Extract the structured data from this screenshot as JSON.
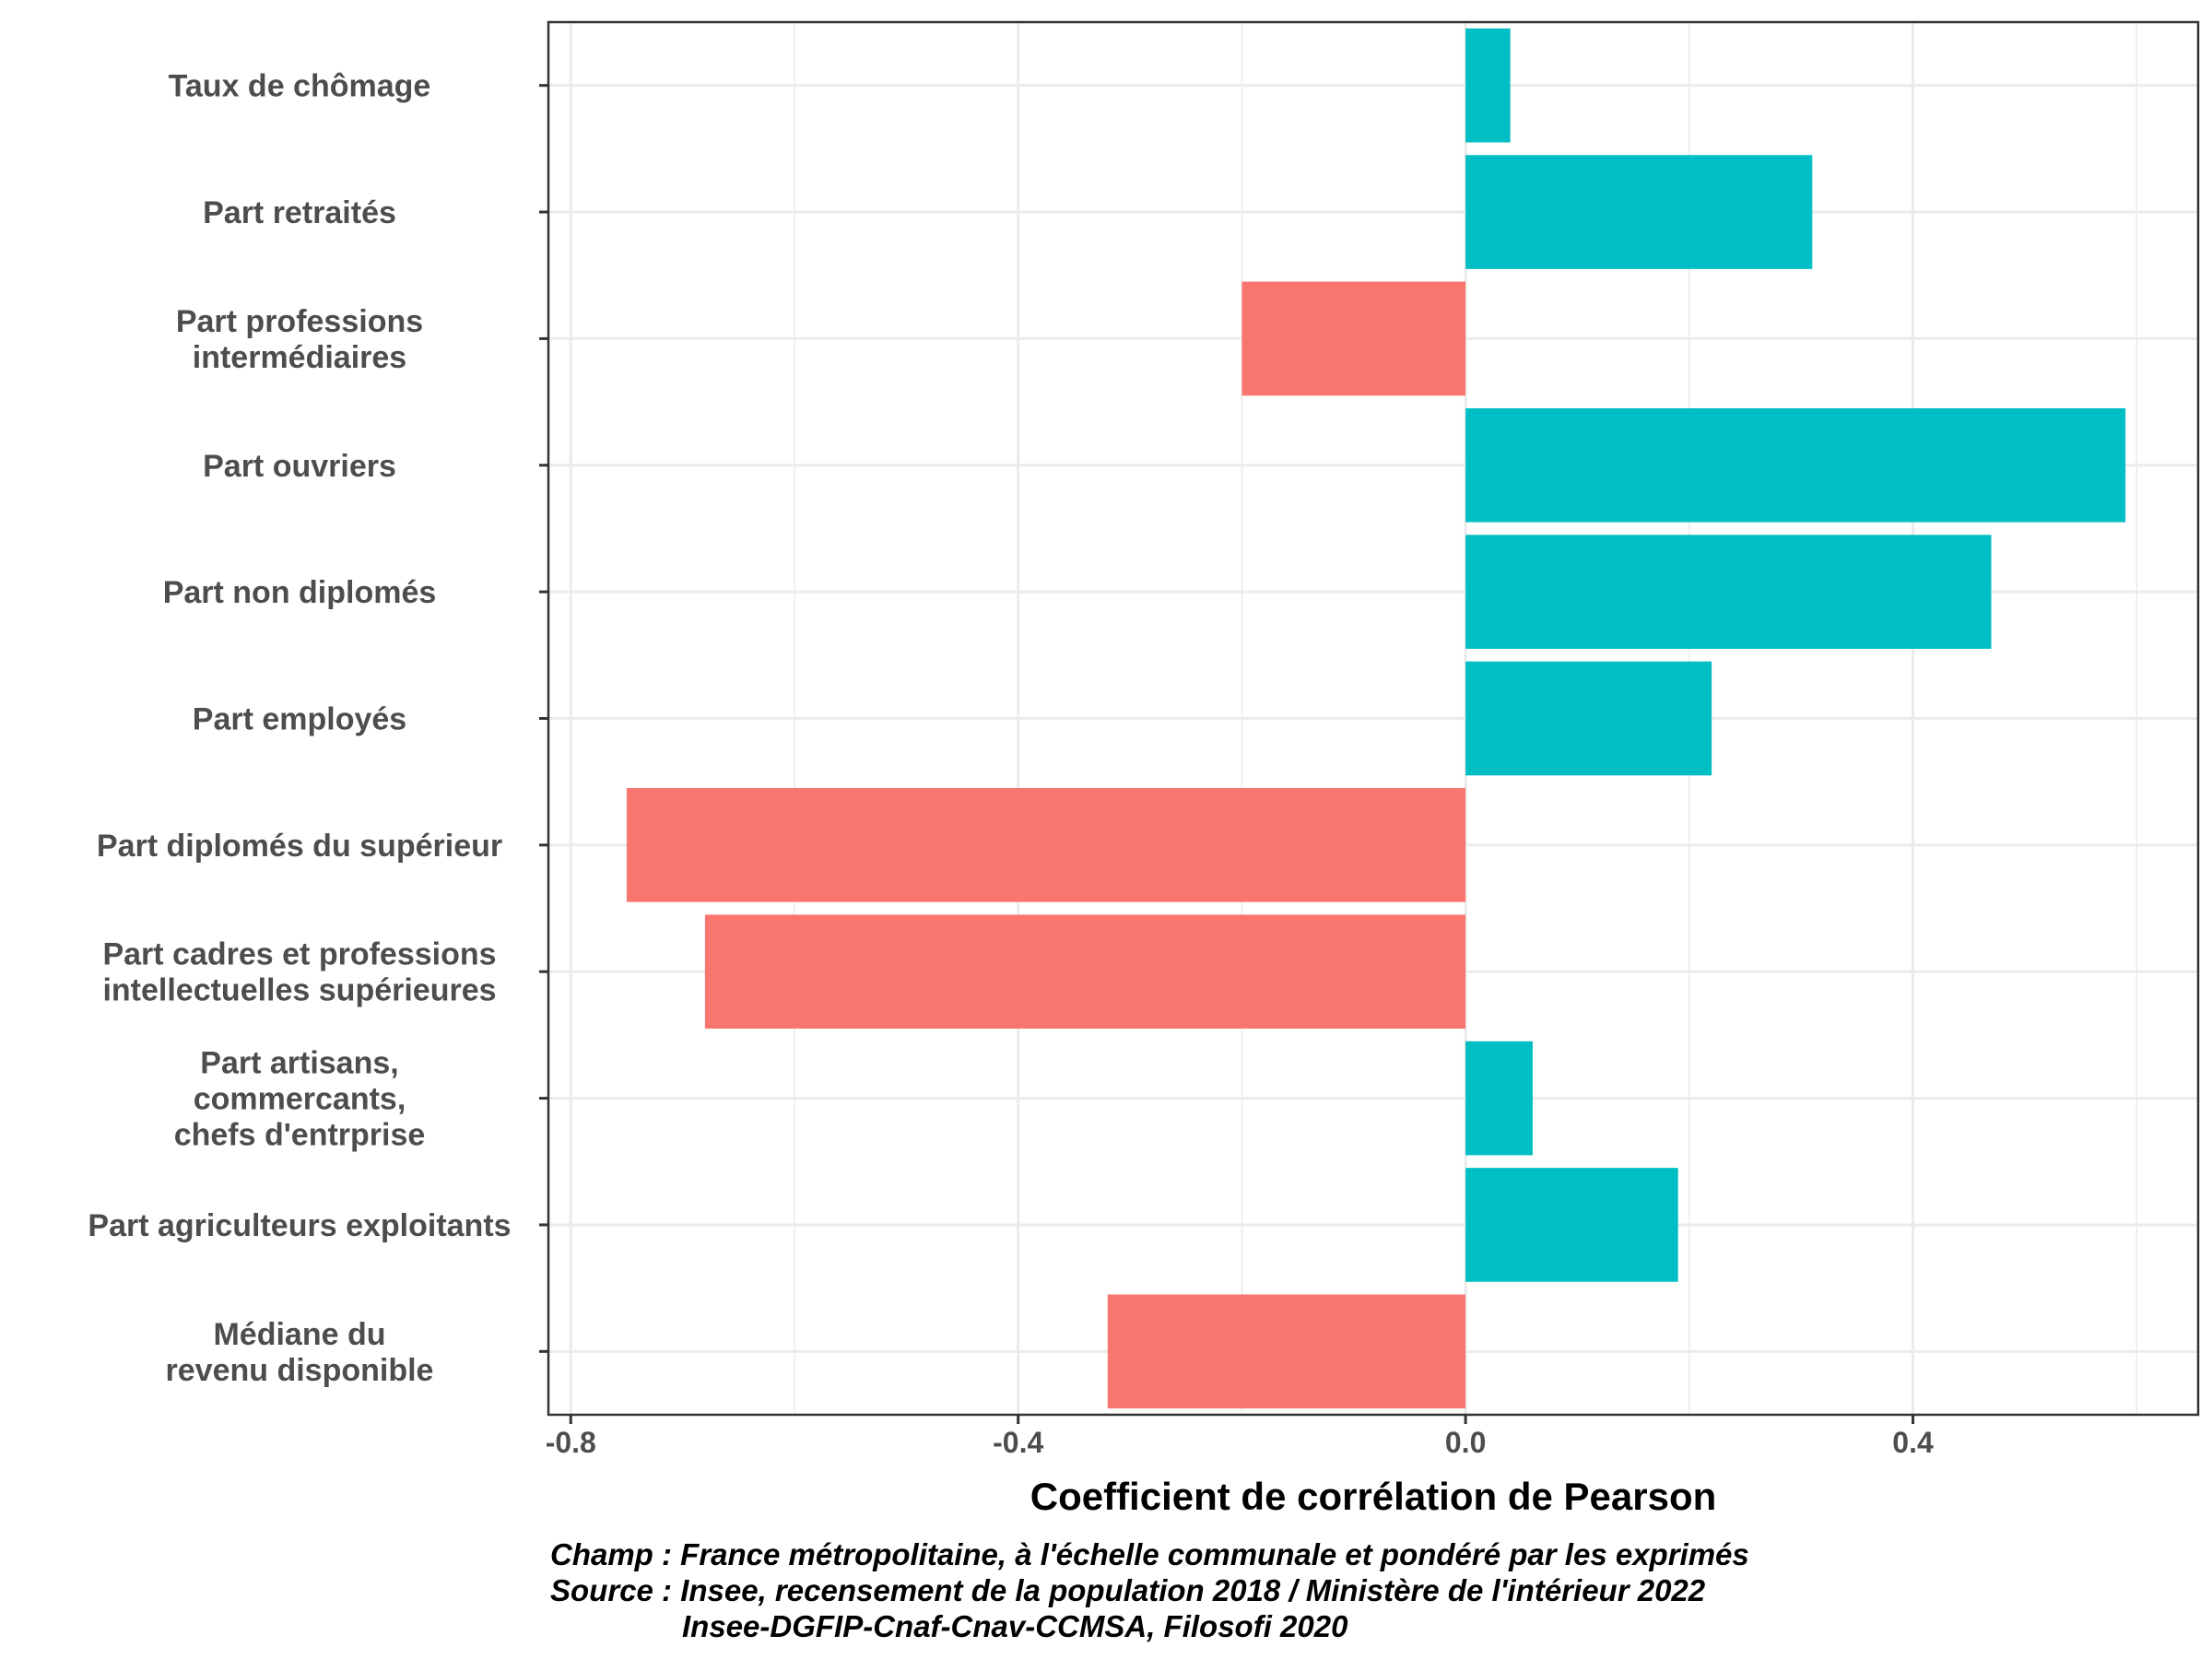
{
  "chart_data": {
    "type": "bar",
    "orientation": "horizontal",
    "categories": [
      [
        "Taux de chômage"
      ],
      [
        "Part retraités"
      ],
      [
        "Part professions",
        "intermédiaires"
      ],
      [
        "Part ouvriers"
      ],
      [
        "Part non diplomés"
      ],
      [
        "Part employés"
      ],
      [
        "Part diplomés du supérieur"
      ],
      [
        "Part cadres et professions",
        "intellectuelles supérieures"
      ],
      [
        "Part artisans,",
        "commercants,",
        "chefs d'entrprise"
      ],
      [
        "Part agriculteurs exploitants"
      ],
      [
        "Médiane du",
        "revenu disponible"
      ]
    ],
    "values": [
      0.04,
      0.31,
      -0.2,
      0.59,
      0.47,
      0.22,
      -0.75,
      -0.68,
      0.06,
      0.19,
      -0.32
    ],
    "xlabel": "Coefficient de corrélation de Pearson",
    "ylabel": "",
    "xlim": [
      -0.82,
      0.655
    ],
    "xticks": [
      -0.8,
      -0.4,
      0.0,
      0.4
    ],
    "xtick_labels": [
      "-0.8",
      "-0.4",
      "0.0",
      "0.4"
    ],
    "grid": true,
    "legend": "none",
    "colors": {
      "positive": "#00BFC4",
      "negative": "#F8766D",
      "grid": "#EBEBEB",
      "panel_border": "#333333"
    }
  },
  "caption": [
    "Champ : France métropolitaine, à l'échelle communale et pondéré par les exprimés",
    "Source : Insee, recensement de la population 2018 / Ministère de l'intérieur 2022",
    "Insee-DGFIP-Cnaf-Cnav-CCMSA, Filosofi 2020"
  ]
}
